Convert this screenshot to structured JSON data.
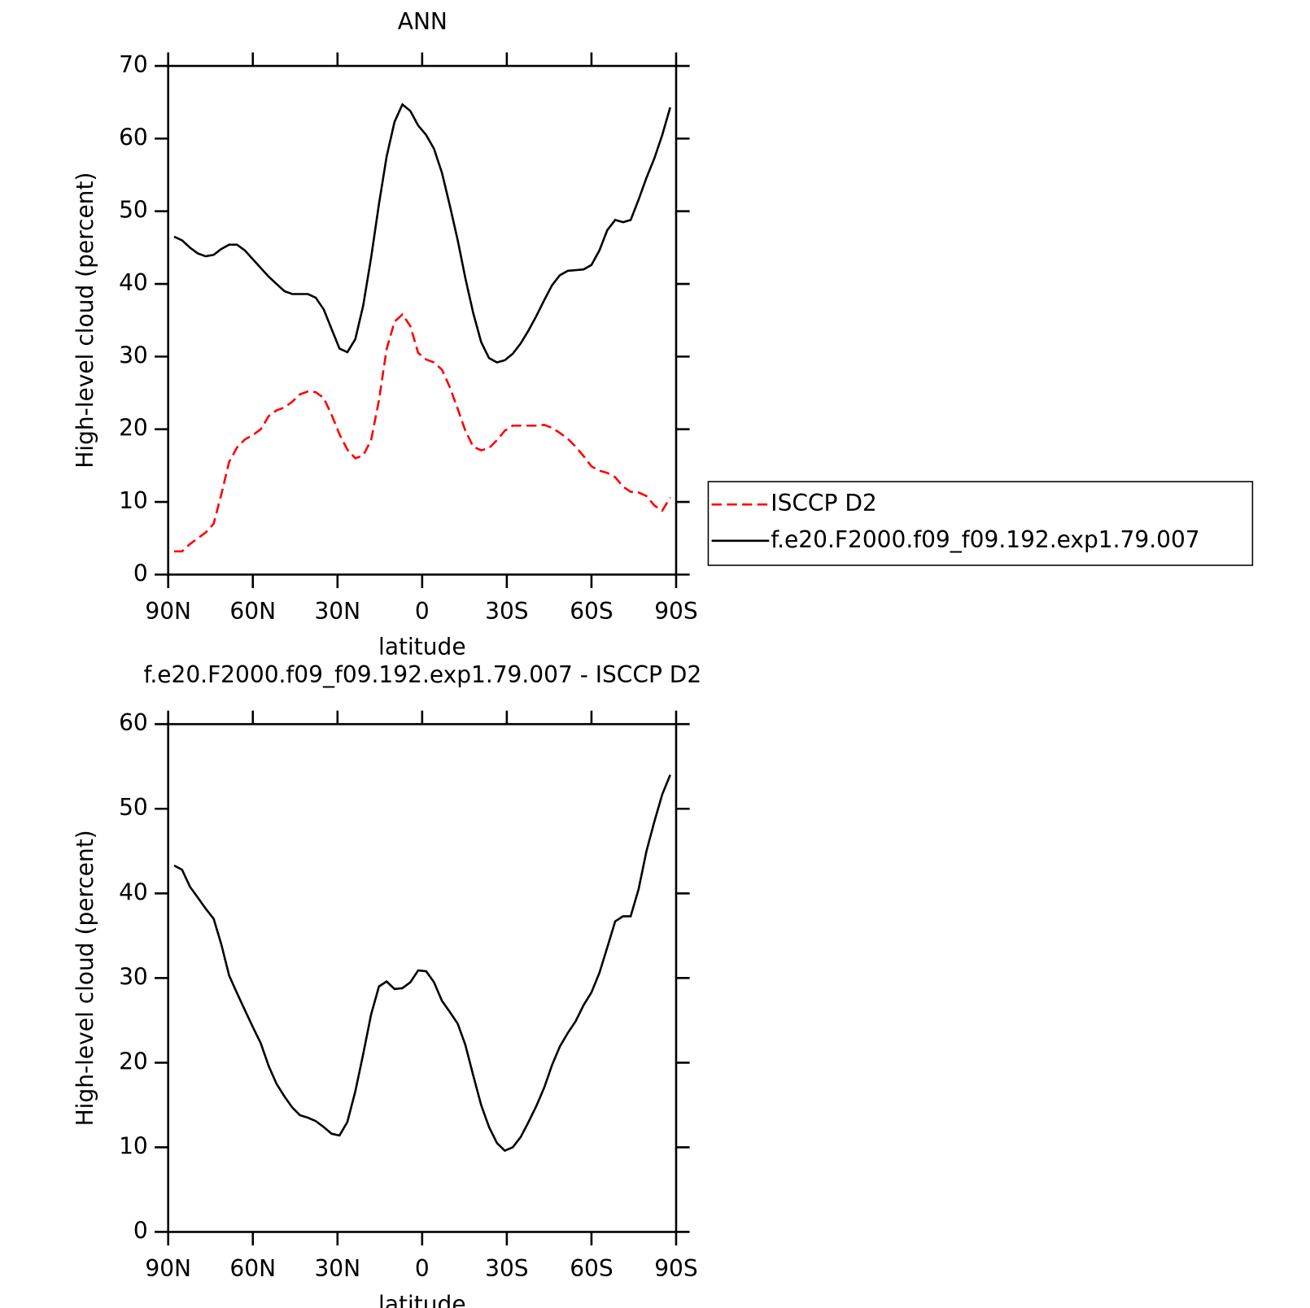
{
  "chart_data": [
    {
      "type": "line",
      "title": "ANN",
      "ylabel": "High-level cloud (percent)",
      "xlabel": "latitude",
      "x": [
        87.9,
        85.1,
        82.3,
        79.5,
        76.7,
        73.9,
        71.2,
        68.4,
        65.6,
        62.8,
        60.0,
        57.2,
        54.4,
        51.6,
        48.8,
        46.0,
        43.3,
        40.5,
        37.7,
        34.9,
        32.1,
        29.3,
        26.5,
        23.7,
        20.9,
        18.1,
        15.3,
        12.6,
        9.8,
        7.0,
        4.2,
        1.4,
        -1.4,
        -4.2,
        -7.0,
        -9.8,
        -12.6,
        -15.3,
        -18.1,
        -20.9,
        -23.7,
        -26.5,
        -29.3,
        -32.1,
        -34.9,
        -37.7,
        -40.5,
        -43.3,
        -46.0,
        -48.8,
        -51.6,
        -54.4,
        -57.2,
        -60.0,
        -62.8,
        -65.6,
        -68.4,
        -71.2,
        -73.9,
        -76.7,
        -79.5,
        -82.3,
        -85.1,
        -87.9
      ],
      "xlim": [
        90,
        -90
      ],
      "xticks": [
        {
          "value": 90,
          "label": "90N"
        },
        {
          "value": 60,
          "label": "60N"
        },
        {
          "value": 30,
          "label": "30N"
        },
        0,
        {
          "value": -30,
          "label": "30S"
        },
        {
          "value": -60,
          "label": "60S"
        },
        {
          "value": -90,
          "label": "90S"
        }
      ],
      "ylim": [
        0,
        70
      ],
      "yticks": [
        0,
        10,
        20,
        30,
        40,
        50,
        60,
        70
      ],
      "legend": "right",
      "series": [
        {
          "name": "ISCCP D2",
          "color": "#ff0000",
          "dash": true,
          "values": [
            3.2,
            3.2,
            4.2,
            5,
            5.8,
            7,
            11,
            15.5,
            17.5,
            18.6,
            19.2,
            20,
            21.8,
            22.6,
            23,
            23.8,
            24.8,
            25.2,
            25.1,
            24.3,
            22,
            19.3,
            17.2,
            16,
            16.4,
            18.5,
            24,
            31,
            34.8,
            35.8,
            34.2,
            30.5,
            29.6,
            29.2,
            28.2,
            25.8,
            22.8,
            19.8,
            17.6,
            17.1,
            17.4,
            18.5,
            19.8,
            20.5,
            20.5,
            20.5,
            20.5,
            20.6,
            20.2,
            19.5,
            18.7,
            17.6,
            16.3,
            14.9,
            14.3,
            14,
            13.4,
            12.1,
            11.4,
            11.3,
            10.8,
            9.5,
            8.8,
            10.6
          ]
        },
        {
          "name": "f.e20.F2000.f09_f09.192.exp1.79.007",
          "color": "#000000",
          "dash": false,
          "values": [
            46.5,
            46,
            45,
            44.2,
            43.8,
            44,
            44.8,
            45.4,
            45.4,
            44.6,
            43.4,
            42.2,
            41,
            40,
            39,
            38.6,
            38.6,
            38.6,
            38.1,
            36.5,
            33.8,
            31.1,
            30.6,
            32.4,
            37,
            43.6,
            51,
            57.5,
            62.3,
            64.7,
            63.8,
            61.8,
            60.5,
            58.6,
            55.3,
            50.8,
            46,
            40.8,
            36,
            32,
            29.8,
            29.2,
            29.5,
            30.4,
            31.8,
            33.6,
            35.6,
            37.8,
            39.8,
            41.2,
            41.8,
            41.9,
            42,
            42.6,
            44.6,
            47.4,
            48.8,
            48.5,
            48.8,
            51.6,
            54.6,
            57.3,
            60.5,
            64.3
          ]
        }
      ]
    },
    {
      "type": "line",
      "title": "f.e20.F2000.f09_f09.192.exp1.79.007 - ISCCP D2",
      "ylabel": "High-level cloud (percent)",
      "xlabel": "latitude",
      "x": [
        87.9,
        85.1,
        82.3,
        79.5,
        76.7,
        73.9,
        71.2,
        68.4,
        65.6,
        62.8,
        60.0,
        57.2,
        54.4,
        51.6,
        48.8,
        46.0,
        43.3,
        40.5,
        37.7,
        34.9,
        32.1,
        29.3,
        26.5,
        23.7,
        20.9,
        18.1,
        15.3,
        12.6,
        9.8,
        7.0,
        4.2,
        1.4,
        -1.4,
        -4.2,
        -7.0,
        -9.8,
        -12.6,
        -15.3,
        -18.1,
        -20.9,
        -23.7,
        -26.5,
        -29.3,
        -32.1,
        -34.9,
        -37.7,
        -40.5,
        -43.3,
        -46.0,
        -48.8,
        -51.6,
        -54.4,
        -57.2,
        -60.0,
        -62.8,
        -65.6,
        -68.4,
        -71.2,
        -73.9,
        -76.7,
        -79.5,
        -82.3,
        -85.1,
        -87.9
      ],
      "xlim": [
        90,
        -90
      ],
      "xticks": [
        {
          "value": 90,
          "label": "90N"
        },
        {
          "value": 60,
          "label": "60N"
        },
        {
          "value": 30,
          "label": "30N"
        },
        0,
        {
          "value": -30,
          "label": "30S"
        },
        {
          "value": -60,
          "label": "60S"
        },
        {
          "value": -90,
          "label": "90S"
        }
      ],
      "ylim": [
        0,
        60
      ],
      "yticks": [
        0,
        10,
        20,
        30,
        40,
        50,
        60
      ],
      "series": [
        {
          "color": "#000000",
          "dash": false,
          "values": [
            43.3,
            42.8,
            40.8,
            39.5,
            38.2,
            37,
            34,
            30.3,
            28.2,
            26.2,
            24.2,
            22.3,
            19.6,
            17.5,
            16,
            14.7,
            13.8,
            13.5,
            13.1,
            12.4,
            11.6,
            11.4,
            13,
            16.6,
            21,
            25.7,
            29,
            29.6,
            28.7,
            28.8,
            29.5,
            30.9,
            30.8,
            29.5,
            27.3,
            26,
            24.6,
            22.1,
            18.5,
            15,
            12.4,
            10.5,
            9.6,
            10,
            11.2,
            13,
            14.9,
            17.1,
            19.7,
            21.9,
            23.5,
            24.9,
            26.8,
            28.3,
            30.6,
            33.6,
            36.7,
            37.3,
            37.3,
            40.5,
            45,
            48.5,
            51.7,
            54
          ]
        }
      ]
    }
  ]
}
